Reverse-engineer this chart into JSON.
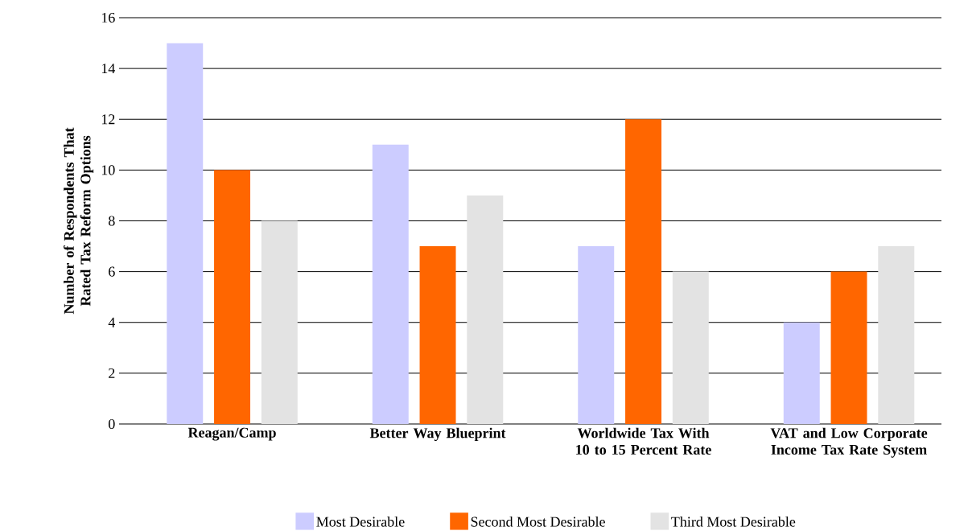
{
  "chart_data": {
    "type": "bar",
    "ylabel": "Number of Respondents That Rated Tax Reform Options",
    "categories": [
      "Reagan/Camp",
      "Better Way Blueprint",
      "Worldwide Tax With 10 to 15 Percent Rate",
      "VAT and Low Corporate Income Tax Rate System"
    ],
    "series": [
      {
        "name": "Most Desirable",
        "color": "#ccccff",
        "values": [
          15,
          11,
          7,
          4
        ]
      },
      {
        "name": "Second Most Desirable",
        "color": "#ff6600",
        "values": [
          10,
          7,
          12,
          6
        ]
      },
      {
        "name": "Third Most Desirable",
        "color": "#e3e3e3",
        "values": [
          8,
          9,
          6,
          7
        ]
      }
    ],
    "ylim": [
      0,
      16
    ],
    "yticks": [
      0,
      2,
      4,
      6,
      8,
      10,
      12,
      14,
      16
    ],
    "grid": "y",
    "legend": "bottom"
  }
}
